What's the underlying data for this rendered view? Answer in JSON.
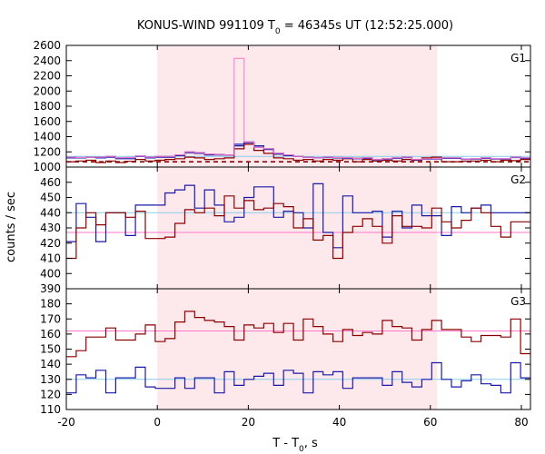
{
  "chart_data": {
    "type": "line",
    "title_prefix": "KONUS-WIND 991109 T",
    "title_sub": "0",
    "title_suffix": " = 46345s UT (12:52:25.000)",
    "xlabel_prefix": "T - T",
    "xlabel_sub": "0",
    "xlabel_suffix": ", s",
    "ylabel": "counts / sec",
    "xlim": [
      -20,
      82
    ],
    "x_ticks": [
      "-20",
      "0",
      "20",
      "40",
      "60",
      "80"
    ],
    "x_tick_values": [
      -20,
      0,
      20,
      40,
      60,
      80
    ],
    "shade_range": [
      0,
      61.5
    ],
    "colors": {
      "series_a": "#1a1aa8",
      "series_b": "#8b0000",
      "bg_a": "#87ceeb",
      "bg_b": "#ff77cc",
      "peak": "#ff77cc",
      "shade": "#fde8ec"
    },
    "panels": [
      {
        "label": "G1",
        "ylim": [
          1000,
          2600
        ],
        "y_ticks": [
          "1000",
          "1200",
          "1400",
          "1600",
          "1800",
          "2000",
          "2200",
          "2400",
          "2600"
        ],
        "y_tick_values": [
          1000,
          1200,
          1400,
          1600,
          1800,
          2000,
          2200,
          2400,
          2600
        ],
        "series": [
          {
            "values": [
              1130,
              1125,
              1130,
              1130,
              1140,
              1120,
              1125,
              1145,
              1130,
              1140,
              1140,
              1160,
              1200,
              1190,
              1170,
              1165,
              1160,
              1280,
              1320,
              1260,
              1240,
              1180,
              1160,
              1140,
              1130,
              1120,
              1130,
              1125,
              1120,
              1115,
              1120,
              1100,
              1110,
              1120,
              1130,
              1100,
              1110,
              1110,
              1120,
              1120,
              1105,
              1110,
              1120,
              1110,
              1110,
              1130,
              1120
            ]
          },
          {
            "values": [
              1070,
              1080,
              1090,
              1060,
              1080,
              1060,
              1075,
              1100,
              1080,
              1090,
              1100,
              1110,
              1130,
              1120,
              1100,
              1110,
              1120,
              1240,
              1300,
              1220,
              1180,
              1120,
              1110,
              1090,
              1100,
              1080,
              1100,
              1090,
              1110,
              1070,
              1100,
              1080,
              1090,
              1080,
              1100,
              1090,
              1120,
              1130,
              1070,
              1070,
              1075,
              1080,
              1090,
              1070,
              1090,
              1085,
              1100
            ]
          },
          {
            "values": [
              1120,
              1120,
              1130,
              1120,
              1130,
              1110,
              1110,
              1140,
              1120,
              1130,
              1130,
              1150,
              1190,
              1180,
              1160,
              1160,
              1160,
              1300,
              1330,
              1280,
              1230,
              1170,
              1150,
              1140,
              1130,
              1120,
              1125,
              1120,
              1115,
              1110,
              1115,
              1095,
              1105,
              1115,
              1125,
              1095,
              1105,
              1105,
              1115,
              1115,
              1100,
              1105,
              1115,
              1105,
              1105,
              1125,
              1115
            ]
          },
          {
            "peak": true,
            "values": [
              1130,
              1125,
              1130,
              1130,
              1140,
              1120,
              1125,
              1145,
              1130,
              1140,
              1140,
              1160,
              1200,
              1190,
              1170,
              1165,
              1160,
              2430,
              1330,
              1260,
              1240,
              1180,
              1160,
              1140,
              1130,
              1120,
              1130,
              1125,
              1120,
              1115,
              1120,
              1100,
              1110,
              1120,
              1130,
              1100,
              1110,
              1110,
              1120,
              1120,
              1105,
              1110,
              1120,
              1110,
              1110,
              1130,
              1120
            ]
          }
        ],
        "backgrounds": [
          {
            "dashed": false,
            "from": -20,
            "to": 82,
            "level": 1140
          },
          {
            "dashed": true,
            "from": -20,
            "to": 82,
            "level": 1070
          }
        ]
      },
      {
        "label": "G2",
        "ylim": [
          390,
          470
        ],
        "y_ticks": [
          "390",
          "400",
          "410",
          "420",
          "430",
          "440",
          "450",
          "460"
        ],
        "y_tick_values": [
          390,
          400,
          410,
          420,
          430,
          440,
          450,
          460
        ],
        "series": [
          {
            "values": [
              421,
              446,
              437,
              421,
              440,
              440,
              425,
              445,
              445,
              445,
              453,
              455,
              458,
              443,
              455,
              445,
              434,
              437,
              450,
              457,
              457,
              437,
              441,
              440,
              430,
              459,
              427,
              417,
              451,
              440,
              440,
              441,
              424,
              441,
              430,
              445,
              438,
              438,
              425,
              444,
              440,
              443,
              445,
              440,
              440,
              440,
              440
            ]
          },
          {
            "values": [
              410,
              430,
              440,
              432,
              440,
              440,
              437,
              441,
              423,
              423,
              424,
              433,
              442,
              440,
              443,
              438,
              451,
              443,
              448,
              442,
              443,
              446,
              444,
              430,
              436,
              422,
              425,
              410,
              427,
              431,
              436,
              431,
              420,
              438,
              431,
              431,
              430,
              443,
              434,
              430,
              435,
              443,
              440,
              431,
              424,
              434,
              434
            ]
          }
        ],
        "backgrounds": [
          {
            "color": "bg_a",
            "from": -20,
            "to": 82,
            "level": 440
          },
          {
            "color": "bg_b",
            "from": -20,
            "to": 82,
            "level": 427
          }
        ]
      },
      {
        "label": "G3",
        "ylim": [
          110,
          190
        ],
        "y_ticks": [
          "110",
          "120",
          "130",
          "140",
          "150",
          "160",
          "170",
          "180"
        ],
        "y_tick_values": [
          110,
          120,
          130,
          140,
          150,
          160,
          170,
          180
        ],
        "series": [
          {
            "values": [
              121,
              133,
              131,
              136,
              121,
              131,
              131,
              138,
              125,
              124,
              124,
              131,
              124,
              131,
              131,
              121,
              135,
              126,
              130,
              132,
              134,
              126,
              136,
              134,
              121,
              135,
              133,
              135,
              124,
              131,
              131,
              131,
              126,
              135,
              128,
              125,
              130,
              141,
              130,
              125,
              129,
              133,
              127,
              126,
              121,
              141,
              131
            ]
          },
          {
            "values": [
              145,
              149,
              158,
              158,
              164,
              156,
              156,
              160,
              166,
              155,
              157,
              168,
              175,
              171,
              169,
              168,
              165,
              156,
              166,
              164,
              167,
              161,
              167,
              156,
              170,
              165,
              160,
              155,
              163,
              159,
              161,
              160,
              169,
              165,
              164,
              156,
              163,
              169,
              163,
              163,
              158,
              155,
              159,
              159,
              158,
              170,
              147
            ]
          }
        ],
        "backgrounds": [
          {
            "color": "bg_a",
            "from": -20,
            "to": 82,
            "level": 130
          },
          {
            "color": "bg_b",
            "from": -20,
            "to": 82,
            "level": 162
          }
        ]
      }
    ]
  }
}
